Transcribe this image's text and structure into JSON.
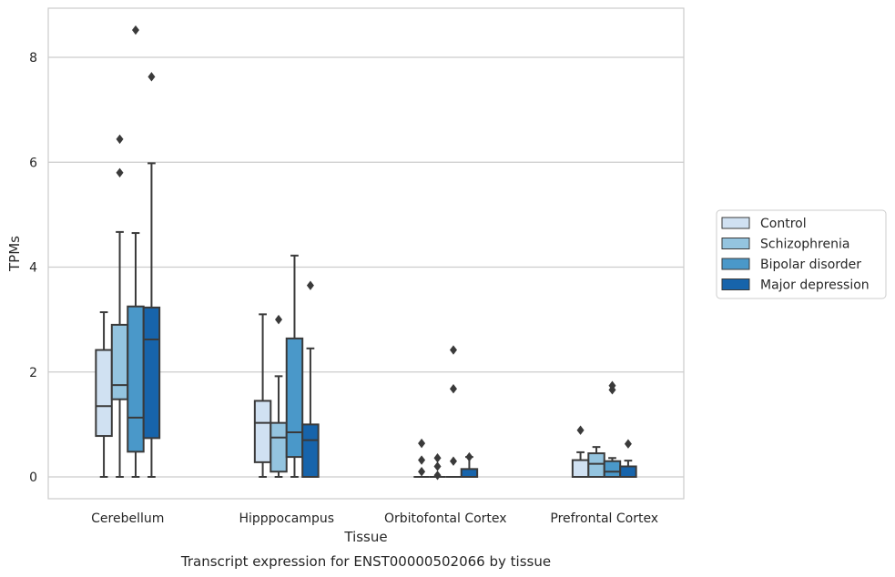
{
  "caption": "Transcript expression for ENST00000502066 by tissue",
  "chart_data": {
    "type": "boxplot",
    "xlabel": "Tissue",
    "ylabel": "TPMs",
    "ylim": [
      -0.4,
      8.9
    ],
    "yticks": [
      0,
      2,
      4,
      6,
      8
    ],
    "grid": "horizontal",
    "legend_position": "right",
    "categories": [
      "Cerebellum",
      "Hipppocampus",
      "Orbitofontal Cortex",
      "Prefrontal Cortex"
    ],
    "series": [
      {
        "name": "Control",
        "color": "#d0e1f2",
        "boxes": [
          {
            "whislo": 0,
            "q1": 0.78,
            "med": 1.35,
            "q3": 2.42,
            "whishi": 3.14,
            "fliers": []
          },
          {
            "whislo": 0,
            "q1": 0.28,
            "med": 1.03,
            "q3": 1.45,
            "whishi": 3.1,
            "fliers": []
          },
          {
            "whislo": 0,
            "q1": 0,
            "med": 0,
            "q3": 0,
            "whishi": 0,
            "fliers": [
              0.1,
              0.32,
              0.64
            ]
          },
          {
            "whislo": 0,
            "q1": 0,
            "med": 0,
            "q3": 0.32,
            "whishi": 0.47,
            "fliers": [
              0.89
            ]
          }
        ]
      },
      {
        "name": "Schizophrenia",
        "color": "#94c4df",
        "boxes": [
          {
            "whislo": 0,
            "q1": 1.48,
            "med": 1.75,
            "q3": 2.9,
            "whishi": 4.67,
            "fliers": [
              5.8,
              6.44
            ]
          },
          {
            "whislo": 0,
            "q1": 0.1,
            "med": 0.75,
            "q3": 1.03,
            "whishi": 1.92,
            "fliers": [
              3.0
            ]
          },
          {
            "whislo": 0,
            "q1": 0,
            "med": 0,
            "q3": 0,
            "whishi": 0,
            "fliers": [
              0.03,
              0.2,
              0.36
            ]
          },
          {
            "whislo": 0,
            "q1": 0,
            "med": 0.25,
            "q3": 0.45,
            "whishi": 0.57,
            "fliers": []
          }
        ]
      },
      {
        "name": "Bipolar disorder",
        "color": "#4a98c9",
        "boxes": [
          {
            "whislo": 0,
            "q1": 0.48,
            "med": 1.13,
            "q3": 3.25,
            "whishi": 4.65,
            "fliers": [
              8.52
            ]
          },
          {
            "whislo": 0,
            "q1": 0.38,
            "med": 0.85,
            "q3": 2.64,
            "whishi": 4.22,
            "fliers": []
          },
          {
            "whislo": 0,
            "q1": 0,
            "med": 0,
            "q3": 0,
            "whishi": 0,
            "fliers": [
              0.3,
              1.68,
              2.42
            ]
          },
          {
            "whislo": 0,
            "q1": 0,
            "med": 0.1,
            "q3": 0.3,
            "whishi": 0.36,
            "fliers": [
              1.66,
              1.74
            ]
          }
        ]
      },
      {
        "name": "Major depression",
        "color": "#1764ab",
        "boxes": [
          {
            "whislo": 0,
            "q1": 0.74,
            "med": 2.62,
            "q3": 3.23,
            "whishi": 5.98,
            "fliers": [
              7.63
            ]
          },
          {
            "whislo": 0,
            "q1": 0,
            "med": 0.7,
            "q3": 1.0,
            "whishi": 2.45,
            "fliers": [
              3.65
            ]
          },
          {
            "whislo": 0,
            "q1": 0,
            "med": 0,
            "q3": 0.15,
            "whishi": 0.38,
            "fliers": [
              0.38
            ]
          },
          {
            "whislo": 0,
            "q1": 0,
            "med": 0,
            "q3": 0.2,
            "whishi": 0.31,
            "fliers": [
              0.63
            ]
          }
        ]
      }
    ]
  }
}
